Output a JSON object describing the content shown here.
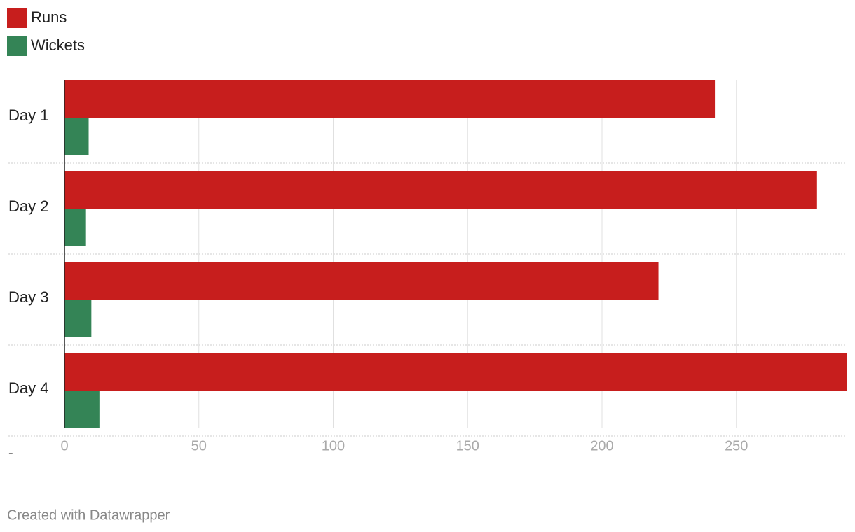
{
  "chart_data": {
    "type": "bar",
    "orientation": "horizontal",
    "categories": [
      "Day 1",
      "Day 2",
      "Day 3",
      "Day 4"
    ],
    "series": [
      {
        "name": "Runs",
        "color": "#c71e1d",
        "values": [
          242,
          280,
          221,
          291
        ]
      },
      {
        "name": "Wickets",
        "color": "#348456",
        "values": [
          9,
          8,
          10,
          13
        ]
      }
    ],
    "xlim": [
      0,
      291
    ],
    "xticks": [
      0,
      50,
      100,
      150,
      200,
      250
    ],
    "grid": true,
    "note": "-",
    "footer": "Created with Datawrapper"
  }
}
